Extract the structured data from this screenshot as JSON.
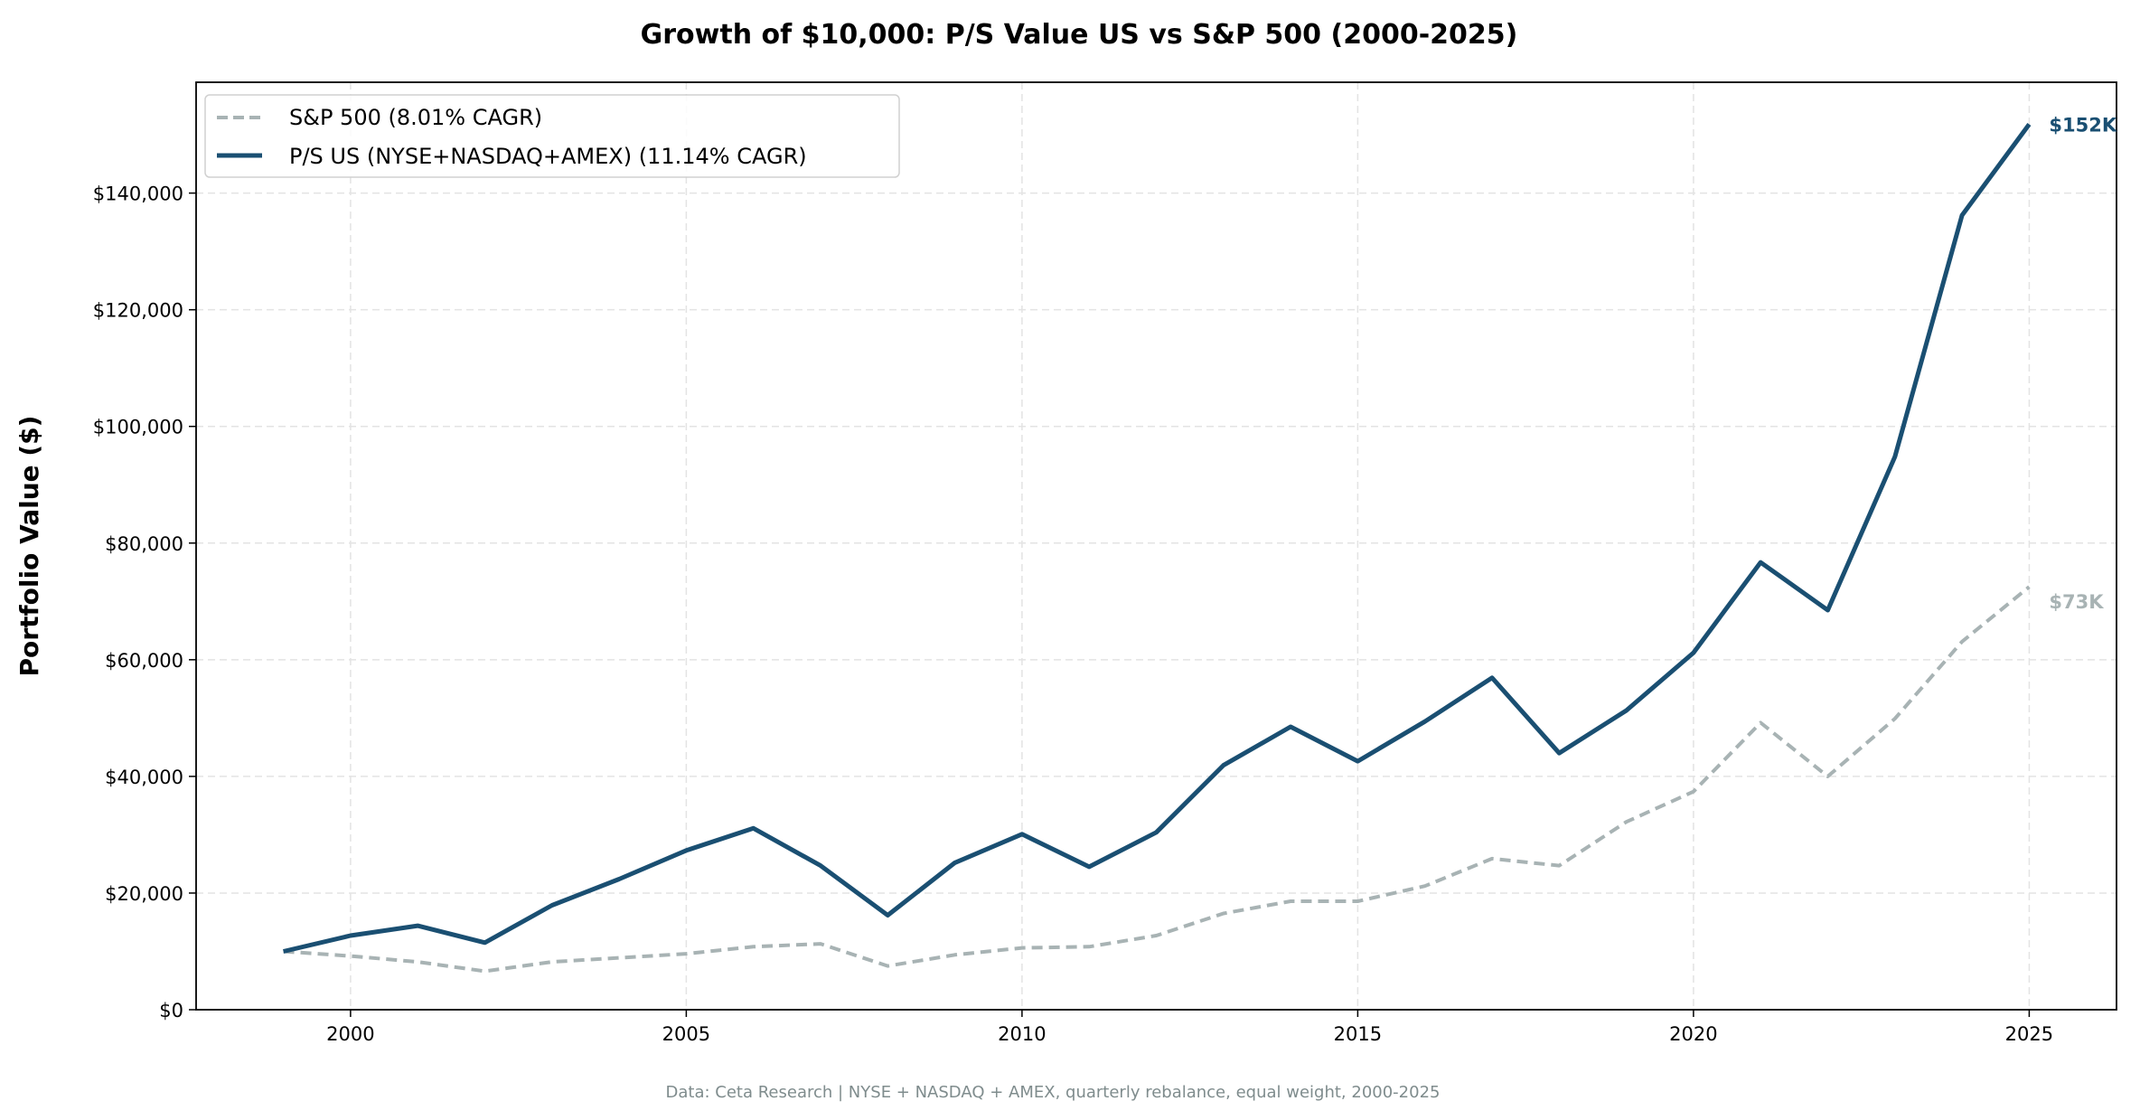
{
  "chart_data": {
    "type": "line",
    "title": "Growth of $10,000: P/S Value US vs S&P 500 (2000-2025)",
    "xlabel": "",
    "ylabel": "Portfolio Value ($)",
    "xlim": [
      1997.7,
      2026.3
    ],
    "ylim": [
      0,
      159000
    ],
    "x_ticks": [
      2000,
      2005,
      2010,
      2015,
      2020,
      2025
    ],
    "y_ticks": [
      0,
      20000,
      40000,
      60000,
      80000,
      100000,
      120000,
      140000
    ],
    "y_tick_labels": [
      "$0",
      "$20,000",
      "$40,000",
      "$60,000",
      "$80,000",
      "$100,000",
      "$120,000",
      "$140,000"
    ],
    "grid": true,
    "legend_position": "top-left",
    "x": [
      1999,
      2000,
      2001,
      2002,
      2003,
      2004,
      2005,
      2006,
      2007,
      2008,
      2009,
      2010,
      2011,
      2012,
      2013,
      2014,
      2015,
      2016,
      2017,
      2018,
      2019,
      2020,
      2021,
      2022,
      2023,
      2024,
      2025
    ],
    "series": [
      {
        "name": "S&P 500 (8.01% CAGR)",
        "color": "#a8b3b4",
        "style": "dashed",
        "values": [
          10000,
          9200,
          8200,
          6600,
          8200,
          8900,
          9600,
          10800,
          11300,
          7500,
          9400,
          10600,
          10800,
          12700,
          16500,
          18600,
          18600,
          21200,
          25900,
          24700,
          32200,
          37400,
          49200,
          40000,
          49900,
          63100,
          72500
        ],
        "end_label": "$73K"
      },
      {
        "name": "P/S US (NYSE+NASDAQ+AMEX) (11.14% CAGR)",
        "color": "#1a4f72",
        "style": "solid",
        "values": [
          10000,
          12700,
          14400,
          11500,
          17900,
          22400,
          27300,
          31100,
          24700,
          16200,
          25200,
          30100,
          24500,
          30400,
          41900,
          48500,
          42600,
          49400,
          56900,
          44000,
          51300,
          61200,
          76700,
          68500,
          94800,
          136200,
          151800
        ],
        "end_label": "$152K"
      }
    ],
    "footnote": "Data: Ceta Research | NYSE + NASDAQ + AMEX, quarterly rebalance, equal weight, 2000-2025"
  }
}
